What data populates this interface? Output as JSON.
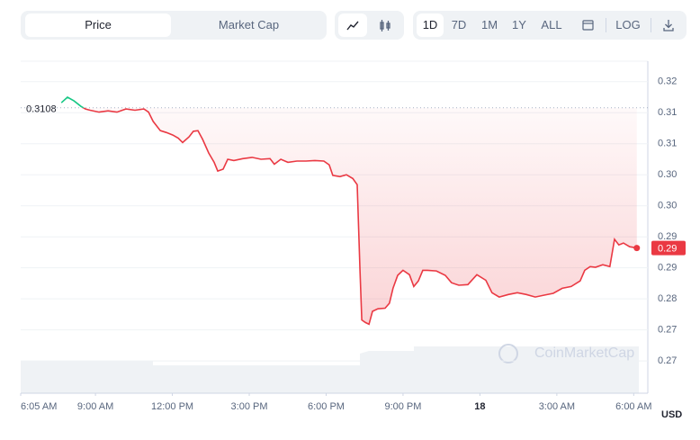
{
  "toolbar": {
    "tabs": [
      "Price",
      "Market Cap"
    ],
    "ranges": [
      "1D",
      "7D",
      "1M",
      "1Y",
      "ALL"
    ],
    "scale": "LOG"
  },
  "watermark": "CoinMarketCap",
  "chart_data": {
    "type": "line",
    "color": "#ea3943",
    "up_color": "#16c784",
    "reference_line": 0.3108,
    "current_price_label": "0.29",
    "y_unit": "USD",
    "grid": true,
    "xlim": [
      6.083,
      30.55
    ],
    "ylim": [
      0.2648,
      0.3183
    ],
    "xticks": [
      {
        "value": 6.083,
        "label": "6:05 AM"
      },
      {
        "value": 9,
        "label": "9:00 AM"
      },
      {
        "value": 12,
        "label": "12:00 PM"
      },
      {
        "value": 15,
        "label": "3:00 PM"
      },
      {
        "value": 18,
        "label": "6:00 PM"
      },
      {
        "value": 21,
        "label": "9:00 PM"
      },
      {
        "value": 24,
        "label": "18"
      },
      {
        "value": 27,
        "label": "3:00 AM"
      },
      {
        "value": 30,
        "label": "6:00 AM"
      }
    ],
    "yticks": [
      {
        "value": 0.315,
        "label": "0.32"
      },
      {
        "value": 0.31,
        "label": "0.31"
      },
      {
        "value": 0.305,
        "label": "0.31"
      },
      {
        "value": 0.3,
        "label": "0.30"
      },
      {
        "value": 0.295,
        "label": "0.30"
      },
      {
        "value": 0.29,
        "label": "0.29"
      },
      {
        "value": 0.285,
        "label": "0.29"
      },
      {
        "value": 0.28,
        "label": "0.28"
      },
      {
        "value": 0.275,
        "label": "0.27"
      },
      {
        "value": 0.27,
        "label": "0.27"
      }
    ],
    "x": [
      7.67,
      7.91,
      8.16,
      8.44,
      8.61,
      8.79,
      9.14,
      9.49,
      9.84,
      10.19,
      10.54,
      10.89,
      11.07,
      11.25,
      11.53,
      11.77,
      12.02,
      12.23,
      12.4,
      12.65,
      12.82,
      13.0,
      13.18,
      13.42,
      13.63,
      13.77,
      13.98,
      14.16,
      14.4,
      14.75,
      15.11,
      15.46,
      15.81,
      15.98,
      16.23,
      16.51,
      16.86,
      17.21,
      17.56,
      17.91,
      18.12,
      18.26,
      18.54,
      18.79,
      19.04,
      19.21,
      19.32,
      19.39,
      19.53,
      19.67,
      19.81,
      20.02,
      20.3,
      20.47,
      20.61,
      20.79,
      21.0,
      21.25,
      21.42,
      21.6,
      21.77,
      21.95,
      22.3,
      22.65,
      22.89,
      23.18,
      23.53,
      23.88,
      24.23,
      24.47,
      24.75,
      25.11,
      25.46,
      25.81,
      26.16,
      26.51,
      26.86,
      27.21,
      27.56,
      27.91,
      28.09,
      28.3,
      28.51,
      28.79,
      29.07,
      29.25,
      29.42,
      29.6,
      29.84,
      30.12
    ],
    "values": [
      0.3116,
      0.3125,
      0.3119,
      0.311,
      0.3106,
      0.3104,
      0.3101,
      0.3103,
      0.3101,
      0.3106,
      0.3104,
      0.3106,
      0.3101,
      0.3086,
      0.3071,
      0.3068,
      0.3064,
      0.3059,
      0.3052,
      0.3061,
      0.307,
      0.3071,
      0.3057,
      0.3035,
      0.302,
      0.3006,
      0.3009,
      0.3025,
      0.3023,
      0.3026,
      0.3028,
      0.3025,
      0.3026,
      0.3017,
      0.3025,
      0.302,
      0.3022,
      0.3022,
      0.3023,
      0.3022,
      0.3016,
      0.2999,
      0.2997,
      0.3,
      0.2994,
      0.2984,
      0.2846,
      0.2766,
      0.2762,
      0.2759,
      0.278,
      0.2784,
      0.2785,
      0.2793,
      0.2817,
      0.2838,
      0.2846,
      0.2839,
      0.282,
      0.2829,
      0.2846,
      0.2846,
      0.2845,
      0.2838,
      0.2826,
      0.2822,
      0.2823,
      0.2839,
      0.283,
      0.281,
      0.2803,
      0.2807,
      0.281,
      0.2807,
      0.2803,
      0.2806,
      0.2809,
      0.2817,
      0.282,
      0.2829,
      0.2846,
      0.2852,
      0.2851,
      0.2855,
      0.2852,
      0.2896,
      0.2887,
      0.289,
      0.2884,
      0.2882
    ]
  }
}
